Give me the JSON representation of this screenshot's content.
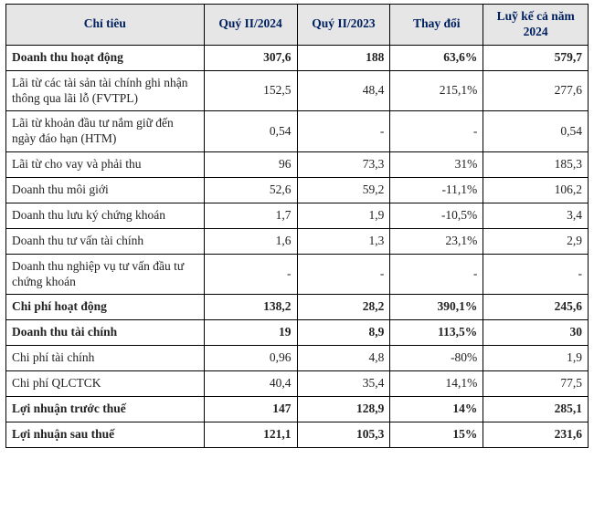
{
  "table": {
    "header_color": "#002060",
    "header_bg": "#e6e6e6",
    "columns": [
      "Chỉ tiêu",
      "Quý II/2024",
      "Quý II/2023",
      "Thay đổi",
      "Luỹ kế cả năm 2024"
    ],
    "rows": [
      {
        "bold": true,
        "label": "Doanh thu hoạt động",
        "q2_2024": "307,6",
        "q2_2023": "188",
        "change": "63,6%",
        "ytd": "579,7"
      },
      {
        "bold": false,
        "label": "Lãi từ các tài sản tài chính ghi nhận thông qua lãi lỗ (FVTPL)",
        "q2_2024": "152,5",
        "q2_2023": "48,4",
        "change": "215,1%",
        "ytd": "277,6"
      },
      {
        "bold": false,
        "label": "Lãi từ khoản đầu tư nắm giữ đến ngày đáo hạn (HTM)",
        "q2_2024": "0,54",
        "q2_2023": "-",
        "change": "-",
        "ytd": "0,54"
      },
      {
        "bold": false,
        "label": "Lãi từ cho vay và phải thu",
        "q2_2024": "96",
        "q2_2023": "73,3",
        "change": "31%",
        "ytd": "185,3"
      },
      {
        "bold": false,
        "label": "Doanh thu môi giới",
        "q2_2024": "52,6",
        "q2_2023": "59,2",
        "change": "-11,1%",
        "ytd": "106,2"
      },
      {
        "bold": false,
        "label": "Doanh thu lưu ký chứng khoán",
        "q2_2024": "1,7",
        "q2_2023": "1,9",
        "change": "-10,5%",
        "ytd": "3,4"
      },
      {
        "bold": false,
        "label": "Doanh thu tư vấn tài chính",
        "q2_2024": "1,6",
        "q2_2023": "1,3",
        "change": "23,1%",
        "ytd": "2,9"
      },
      {
        "bold": false,
        "label": "Doanh thu nghiệp vụ tư vấn đầu tư chứng khoán",
        "q2_2024": "-",
        "q2_2023": "-",
        "change": "-",
        "ytd": "-"
      },
      {
        "bold": true,
        "label": "Chi phí hoạt động",
        "q2_2024": "138,2",
        "q2_2023": "28,2",
        "change": "390,1%",
        "ytd": "245,6"
      },
      {
        "bold": true,
        "label": "Doanh thu tài chính",
        "q2_2024": "19",
        "q2_2023": "8,9",
        "change": "113,5%",
        "ytd": "30"
      },
      {
        "bold": false,
        "label": "Chi phí tài chính",
        "q2_2024": "0,96",
        "q2_2023": "4,8",
        "change": "-80%",
        "ytd": "1,9"
      },
      {
        "bold": false,
        "label": "Chi phí QLCTCK",
        "q2_2024": "40,4",
        "q2_2023": "35,4",
        "change": "14,1%",
        "ytd": "77,5"
      },
      {
        "bold": true,
        "label": "Lợi nhuận trước thuế",
        "q2_2024": "147",
        "q2_2023": "128,9",
        "change": "14%",
        "ytd": "285,1"
      },
      {
        "bold": true,
        "label": "Lợi nhuận sau thuế",
        "q2_2024": "121,1",
        "q2_2023": "105,3",
        "change": "15%",
        "ytd": "231,6"
      }
    ]
  }
}
